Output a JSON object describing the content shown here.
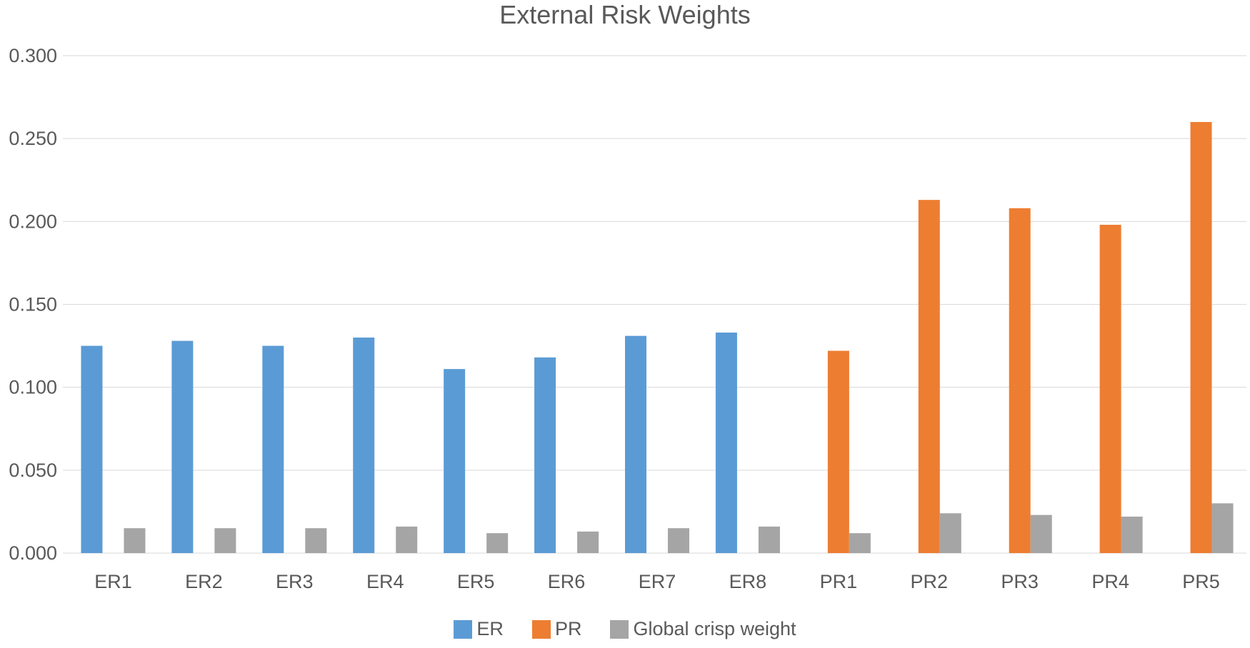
{
  "chart_data": {
    "type": "bar",
    "title": "External Risk Weights",
    "categories": [
      "ER1",
      "ER2",
      "ER3",
      "ER4",
      "ER5",
      "ER6",
      "ER7",
      "ER8",
      "PR1",
      "PR2",
      "PR3",
      "PR4",
      "PR5"
    ],
    "series": [
      {
        "name": "ER",
        "color": "#5B9BD5",
        "values": [
          0.125,
          0.128,
          0.125,
          0.13,
          0.111,
          0.118,
          0.131,
          0.133,
          null,
          null,
          null,
          null,
          null
        ]
      },
      {
        "name": "PR",
        "color": "#ED7D31",
        "values": [
          null,
          null,
          null,
          null,
          null,
          null,
          null,
          null,
          0.122,
          0.213,
          0.208,
          0.198,
          0.26
        ]
      },
      {
        "name": "Global crisp weight",
        "color": "#A5A5A5",
        "values": [
          0.015,
          0.015,
          0.015,
          0.016,
          0.012,
          0.013,
          0.015,
          0.016,
          0.012,
          0.024,
          0.023,
          0.022,
          0.03
        ]
      }
    ],
    "ylim": [
      0,
      0.3
    ],
    "ytick_step": 0.05,
    "ytick_labels": [
      "0.000",
      "0.050",
      "0.100",
      "0.150",
      "0.200",
      "0.250",
      "0.300"
    ],
    "xlabel": "",
    "ylabel": "",
    "grid": true,
    "legend_position": "bottom"
  },
  "colors": {
    "grid": "#D9D9D9",
    "text": "#595959",
    "background": "#FFFFFF"
  }
}
